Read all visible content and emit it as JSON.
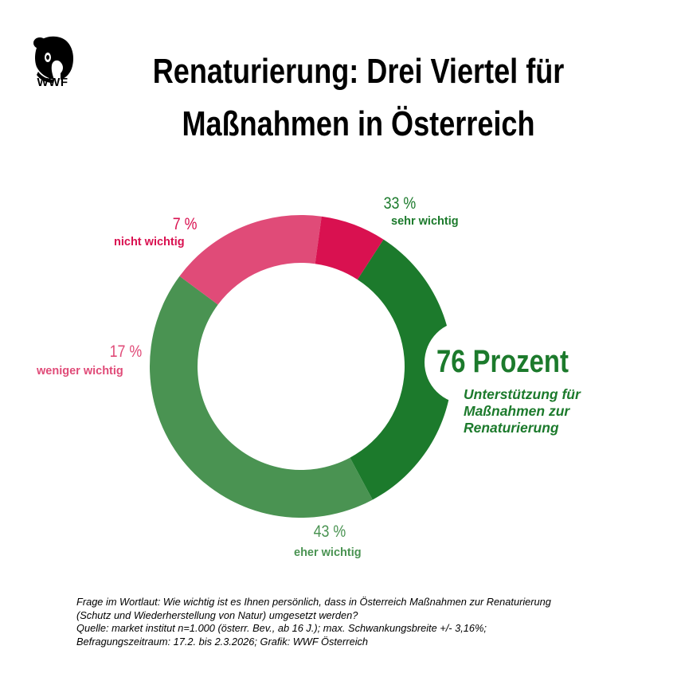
{
  "logo": {
    "text": "WWF"
  },
  "title": {
    "line1": "Renaturierung: Drei Viertel für",
    "line2": "Maßnahmen in Österreich"
  },
  "chart_data": {
    "type": "pie",
    "donut": true,
    "start_angle_deg": 33,
    "slices": [
      {
        "pct_label": "33 %",
        "value": 33,
        "label": "sehr wichtig",
        "color": "#1c7a2c"
      },
      {
        "pct_label": "43 %",
        "value": 43,
        "label": "eher wichtig",
        "color": "#4a9352"
      },
      {
        "pct_label": "17 %",
        "value": 17,
        "label": "weniger wichtig",
        "color": "#e04b78"
      },
      {
        "pct_label": "7 %",
        "value": 7,
        "label": "nicht wichtig",
        "color": "#d91150"
      }
    ],
    "highlight": {
      "value": "76 Prozent",
      "lines": [
        "Unterstützung für",
        "Maßnahmen zur",
        "Renaturierung"
      ]
    }
  },
  "footnote": {
    "lines": [
      "Frage im Wortlaut: Wie wichtig ist es Ihnen persönlich, dass in Österreich Maßnahmen zur Renaturierung",
      "(Schutz und Wiederherstellung von Natur) umgesetzt werden?",
      "Quelle: market institut n=1.000 (österr. Bev., ab 16 J.); max. Schwankungsbreite +/- 3,16%;",
      "Befragungszeitraum: 17.2. bis 2.3.2026; Grafik: WWF Österreich"
    ]
  }
}
